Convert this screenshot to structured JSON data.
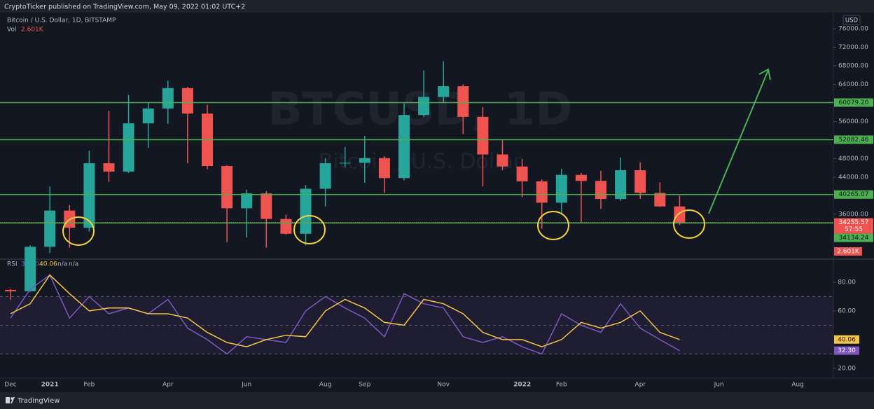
{
  "header": {
    "publisher": "CryptoTicker published on TradingView.com, May 09, 2022 01:02 UTC+2",
    "brand": "TradingView"
  },
  "chart_data": [
    {
      "type": "candlestick",
      "title": "Bitcoin / U.S. Dollar, 1D, BITSTAMP",
      "watermark": "BTCUSD, 1D",
      "watermark_subtitle": "Bitcoin / U.S. Dollar",
      "currency": "USD",
      "volume_name": "Vol",
      "volume_label": "2.601K",
      "countdown": "57:55",
      "up_color": "#26a69a",
      "down_color": "#ef5350",
      "categories": [
        "Dec",
        null,
        "2021",
        null,
        "Feb",
        null,
        null,
        null,
        "Apr",
        null,
        null,
        null,
        "Jun",
        null,
        null,
        null,
        "Aug",
        null,
        "Sep",
        null,
        null,
        null,
        "Nov",
        null,
        null,
        null,
        "2022",
        null,
        "Feb",
        null,
        null,
        null,
        "Apr",
        null,
        null,
        null,
        "Jun",
        null,
        null,
        null,
        "Aug",
        null
      ],
      "open": [
        19700,
        19400,
        29000,
        36800,
        33100,
        47000,
        45200,
        55600,
        58800,
        63200,
        57700,
        46400,
        37300,
        40500,
        35000,
        31800,
        41500,
        47000,
        47100,
        48100,
        43800,
        57400,
        61300,
        63600,
        57000,
        48900,
        46300,
        43100,
        38500,
        44500,
        43200,
        39300,
        45500,
        40600,
        37700,
        null,
        null,
        null,
        null,
        null,
        null,
        null
      ],
      "high": [
        19900,
        29300,
        42000,
        38000,
        49700,
        58300,
        61700,
        60000,
        64800,
        63500,
        59600,
        46600,
        41300,
        41000,
        35900,
        42300,
        48100,
        50500,
        52900,
        48500,
        59900,
        67000,
        69000,
        64000,
        59100,
        52100,
        47900,
        43500,
        45800,
        44900,
        45400,
        48200,
        47200,
        42900,
        40000,
        null,
        null,
        null,
        null,
        null,
        null,
        null
      ],
      "low": [
        17600,
        19300,
        27700,
        28800,
        32300,
        43000,
        44900,
        50300,
        55500,
        47000,
        45700,
        30000,
        31000,
        28800,
        31600,
        29300,
        37700,
        46200,
        42800,
        40600,
        43300,
        57000,
        60000,
        53300,
        42000,
        45500,
        39700,
        32900,
        36300,
        34300,
        37200,
        38900,
        39300,
        37600,
        33700,
        null,
        null,
        null,
        null,
        null,
        null,
        null
      ],
      "close": [
        19400,
        29000,
        36800,
        33100,
        47000,
        45200,
        55600,
        58800,
        63200,
        57700,
        46400,
        37300,
        40500,
        35000,
        31800,
        41500,
        47000,
        47100,
        48100,
        43800,
        57400,
        61300,
        63600,
        57000,
        48900,
        46300,
        43100,
        38500,
        44500,
        43200,
        39300,
        45500,
        40600,
        37700,
        34255.57,
        null,
        null,
        null,
        null,
        null,
        null,
        null
      ],
      "last_price": {
        "value": 34255.57,
        "label": "34255.57"
      },
      "ylim": [
        26640,
        79470
      ],
      "yticks": [
        {
          "value": 76000,
          "label": "76000.00"
        },
        {
          "value": 72000,
          "label": "72000.00"
        },
        {
          "value": 68000,
          "label": "68000.00"
        },
        {
          "value": 64000,
          "label": "64000.00"
        },
        {
          "value": 56000,
          "label": "56000.00"
        },
        {
          "value": 48000,
          "label": "48000.00"
        },
        {
          "value": 44000,
          "label": "44000.00"
        },
        {
          "value": 36000,
          "label": "36000.00"
        }
      ],
      "levels": [
        {
          "value": 60079.2,
          "label": "60079.20"
        },
        {
          "value": 52082.46,
          "label": "52082.46"
        },
        {
          "value": 40265.07,
          "label": "40265.07"
        },
        {
          "value": 34134.24,
          "label": "34134.24"
        }
      ],
      "level_color": "#4caf50",
      "grid": false
    },
    {
      "type": "line",
      "title": "RSI",
      "extra_labels": [
        "n/a",
        "n/a"
      ],
      "series": [
        {
          "color": "#7e57c2",
          "last_label": "32.30",
          "values": [
            55,
            75,
            85,
            55,
            70,
            58,
            62,
            58,
            68,
            48,
            40,
            30,
            42,
            40,
            38,
            60,
            70,
            62,
            55,
            42,
            72,
            65,
            62,
            42,
            38,
            42,
            35,
            30,
            58,
            50,
            45,
            65,
            48,
            40,
            32.3,
            null,
            null,
            null,
            null,
            null,
            null,
            null
          ]
        },
        {
          "color": "#f5c542",
          "last_label": "40.06",
          "values": [
            58,
            65,
            85,
            72,
            60,
            62,
            62,
            58,
            58,
            55,
            45,
            38,
            35,
            40,
            43,
            42,
            60,
            68,
            62,
            52,
            50,
            68,
            65,
            58,
            45,
            40,
            40,
            35,
            40,
            52,
            48,
            52,
            60,
            45,
            40.06,
            null,
            null,
            null,
            null,
            null,
            null,
            null
          ]
        }
      ],
      "bands": [
        70,
        50,
        30
      ],
      "ylim": [
        13.1,
        95.1
      ],
      "yticks": [
        {
          "value": 80,
          "label": "80.00"
        },
        {
          "value": 60,
          "label": "60.00"
        },
        {
          "value": 20,
          "label": "20.00"
        }
      ]
    }
  ]
}
